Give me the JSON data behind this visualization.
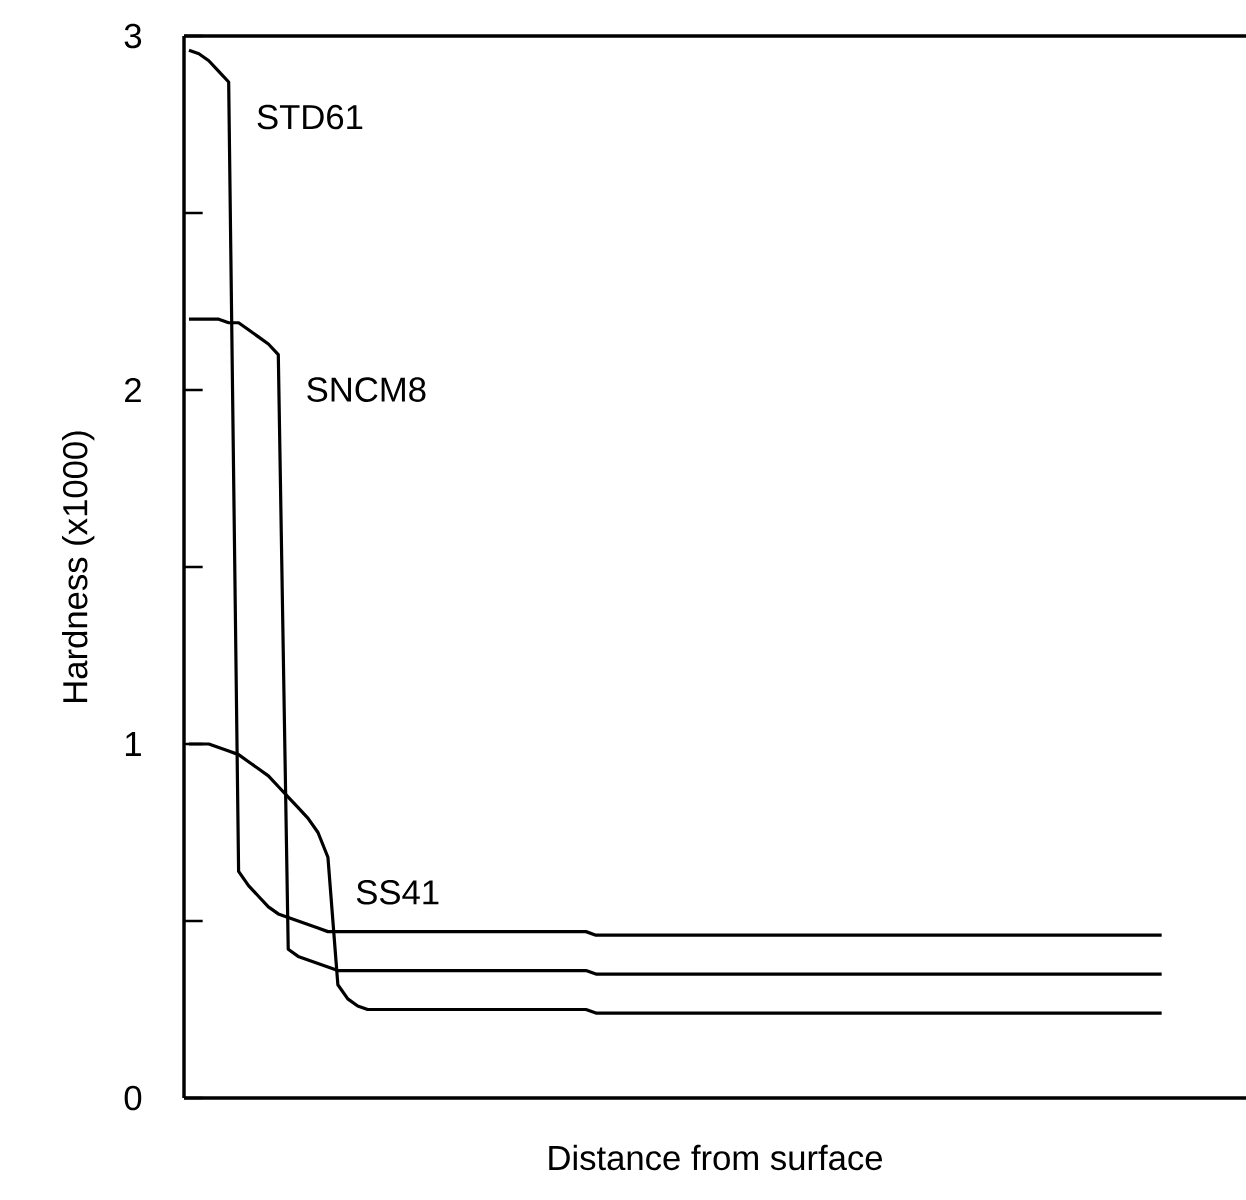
{
  "chart_data": {
    "type": "line",
    "xlabel": "Distance from surface",
    "ylabel": "Hardness (x1000)",
    "tick_labels": "y",
    "categories": [
      null,
      null,
      null,
      null,
      null,
      null,
      null,
      null,
      null,
      null,
      null,
      null,
      null,
      null,
      null,
      null,
      null,
      null,
      null,
      null,
      null,
      null,
      null,
      null,
      null,
      null,
      null,
      null,
      null,
      null,
      null,
      null,
      null,
      null,
      null,
      null,
      null,
      null,
      null,
      null,
      null,
      null,
      null,
      null,
      null,
      null,
      null,
      null,
      null,
      null,
      null,
      null,
      null,
      null,
      null,
      null,
      null,
      null,
      null,
      null,
      null,
      null,
      null,
      null,
      null,
      null,
      null,
      null,
      null,
      null,
      null,
      null,
      null,
      null,
      null,
      null,
      null,
      null,
      null,
      null,
      null,
      null,
      null,
      null,
      null,
      null,
      null,
      null,
      null,
      null,
      null,
      null,
      null,
      null,
      null,
      null,
      null,
      null,
      null,
      null,
      null,
      null,
      null,
      null,
      null,
      null,
      null
    ],
    "ylim": [
      0,
      3
    ],
    "yticks": [
      0,
      {
        "value": 0.5,
        "label": null
      },
      1,
      {
        "value": 1.5,
        "label": null
      },
      2,
      {
        "value": 2.5,
        "label": null
      },
      3
    ],
    "series": [
      {
        "name": "STD61",
        "color": "#000000",
        "values": [
          2.96,
          2.95,
          2.93,
          2.9,
          2.87,
          0.64,
          0.6,
          0.57,
          0.54,
          0.52,
          0.51,
          0.5,
          0.49,
          0.48,
          0.47,
          0.47,
          0.47,
          0.47,
          0.47,
          0.47,
          0.47,
          0.47,
          0.47,
          0.47,
          0.47,
          0.47,
          0.47,
          0.47,
          0.47,
          0.47,
          0.47,
          0.47,
          0.47,
          0.47,
          0.47,
          0.47,
          0.47,
          0.47,
          0.47,
          0.47,
          0.47,
          0.46,
          0.46,
          0.46,
          0.46,
          0.46,
          0.46,
          0.46,
          0.46,
          0.46,
          0.46,
          0.46,
          0.46,
          0.46,
          0.46,
          0.46,
          0.46,
          0.46,
          0.46,
          0.46,
          0.46,
          0.46,
          0.46,
          0.46,
          0.46,
          0.46,
          0.46,
          0.46,
          0.46,
          0.46,
          0.46,
          0.46,
          0.46,
          0.46,
          0.46,
          0.46,
          0.46,
          0.46,
          0.46,
          0.46,
          0.46,
          0.46,
          0.46,
          0.46,
          0.46,
          0.46,
          0.46,
          0.46,
          0.46,
          0.46,
          0.46,
          0.46,
          0.46,
          0.46,
          0.46,
          0.46,
          0.46,
          0.46,
          0.46,
          null,
          null,
          null,
          null,
          null,
          null,
          null,
          null
        ]
      },
      {
        "name": "SNCM8",
        "color": "#000000",
        "values": [
          2.2,
          2.2,
          2.2,
          2.2,
          2.19,
          2.19,
          2.17,
          2.15,
          2.13,
          2.1,
          0.42,
          0.4,
          0.39,
          0.38,
          0.37,
          0.36,
          0.36,
          0.36,
          0.36,
          0.36,
          0.36,
          0.36,
          0.36,
          0.36,
          0.36,
          0.36,
          0.36,
          0.36,
          0.36,
          0.36,
          0.36,
          0.36,
          0.36,
          0.36,
          0.36,
          0.36,
          0.36,
          0.36,
          0.36,
          0.36,
          0.36,
          0.35,
          0.35,
          0.35,
          0.35,
          0.35,
          0.35,
          0.35,
          0.35,
          0.35,
          0.35,
          0.35,
          0.35,
          0.35,
          0.35,
          0.35,
          0.35,
          0.35,
          0.35,
          0.35,
          0.35,
          0.35,
          0.35,
          0.35,
          0.35,
          0.35,
          0.35,
          0.35,
          0.35,
          0.35,
          0.35,
          0.35,
          0.35,
          0.35,
          0.35,
          0.35,
          0.35,
          0.35,
          0.35,
          0.35,
          0.35,
          0.35,
          0.35,
          0.35,
          0.35,
          0.35,
          0.35,
          0.35,
          0.35,
          0.35,
          0.35,
          0.35,
          0.35,
          0.35,
          0.35,
          0.35,
          0.35,
          0.35,
          0.35,
          null,
          null,
          null,
          null,
          null,
          null,
          null,
          null
        ]
      },
      {
        "name": "SS41",
        "color": "#000000",
        "values": [
          1.0,
          1.0,
          1.0,
          0.99,
          0.98,
          0.97,
          0.95,
          0.93,
          0.91,
          0.88,
          0.85,
          0.82,
          0.79,
          0.75,
          0.68,
          0.32,
          0.28,
          0.26,
          0.25,
          0.25,
          0.25,
          0.25,
          0.25,
          0.25,
          0.25,
          0.25,
          0.25,
          0.25,
          0.25,
          0.25,
          0.25,
          0.25,
          0.25,
          0.25,
          0.25,
          0.25,
          0.25,
          0.25,
          0.25,
          0.25,
          0.25,
          0.24,
          0.24,
          0.24,
          0.24,
          0.24,
          0.24,
          0.24,
          0.24,
          0.24,
          0.24,
          0.24,
          0.24,
          0.24,
          0.24,
          0.24,
          0.24,
          0.24,
          0.24,
          0.24,
          0.24,
          0.24,
          0.24,
          0.24,
          0.24,
          0.24,
          0.24,
          0.24,
          0.24,
          0.24,
          0.24,
          0.24,
          0.24,
          0.24,
          0.24,
          0.24,
          0.24,
          0.24,
          0.24,
          0.24,
          0.24,
          0.24,
          0.24,
          0.24,
          0.24,
          0.24,
          0.24,
          0.24,
          0.24,
          0.24,
          0.24,
          0.24,
          0.24,
          0.24,
          0.24,
          0.24,
          0.24,
          0.24,
          0.24,
          null,
          null,
          null,
          null,
          null,
          null,
          null,
          null
        ]
      }
    ]
  }
}
